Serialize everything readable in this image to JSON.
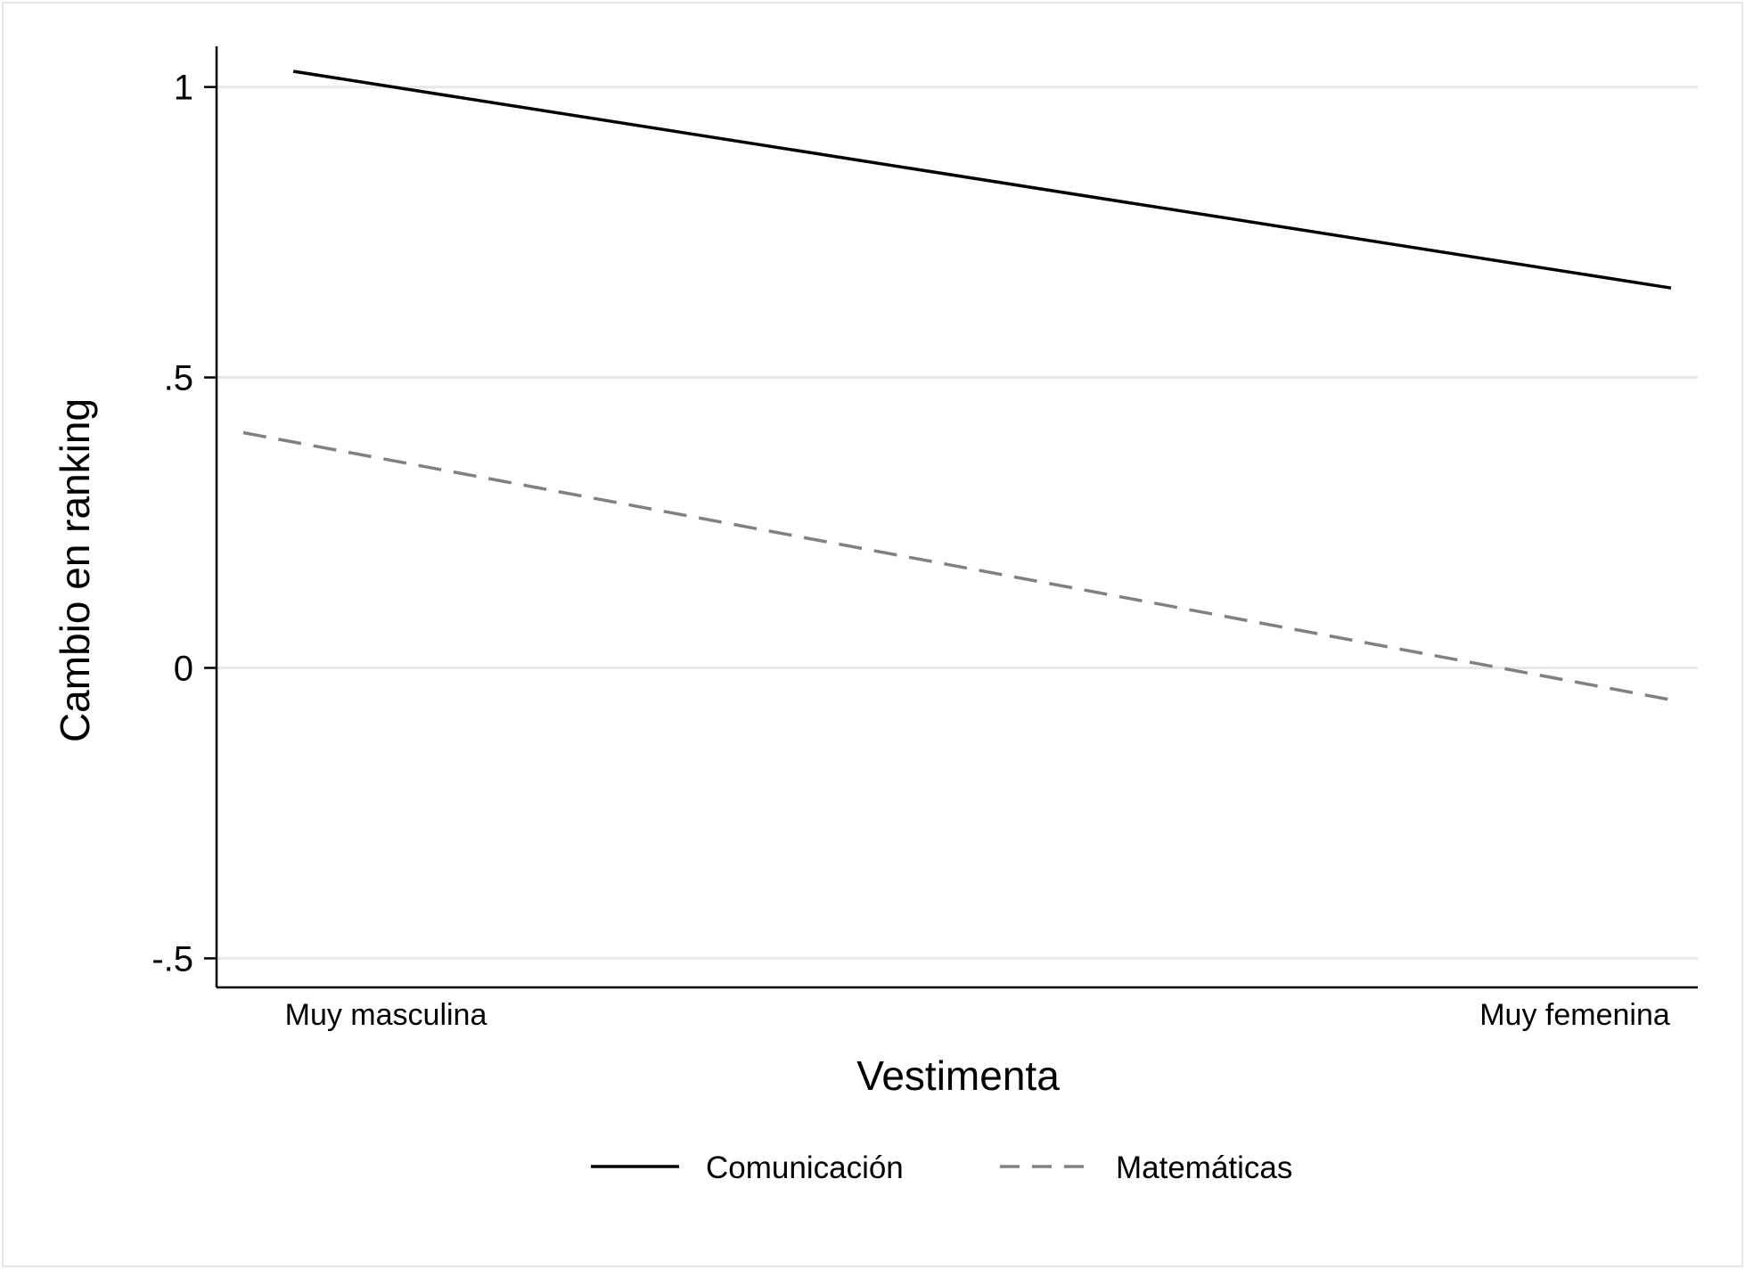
{
  "chart_data": {
    "type": "line",
    "title": "",
    "xlabel": "Vestimenta",
    "ylabel": "Cambio en ranking",
    "categories": [
      "Muy masculina",
      "Muy femenina"
    ],
    "ylim": [
      -0.55,
      1.07
    ],
    "yticks": [
      {
        "value": -0.5,
        "label": "-.5"
      },
      {
        "value": 0,
        "label": "0"
      },
      {
        "value": 0.5,
        "label": ".5"
      },
      {
        "value": 1,
        "label": "1"
      }
    ],
    "grid": true,
    "legend_position": "bottom",
    "series": [
      {
        "name": "Comunicación",
        "x": [
          0.035,
          1.0
        ],
        "y": [
          1.027,
          0.654
        ],
        "color": "#000000",
        "style": "solid"
      },
      {
        "name": "Matemáticas",
        "x": [
          0.0,
          1.0
        ],
        "y": [
          0.405,
          -0.055
        ],
        "color": "#808080",
        "style": "dashed"
      }
    ]
  }
}
